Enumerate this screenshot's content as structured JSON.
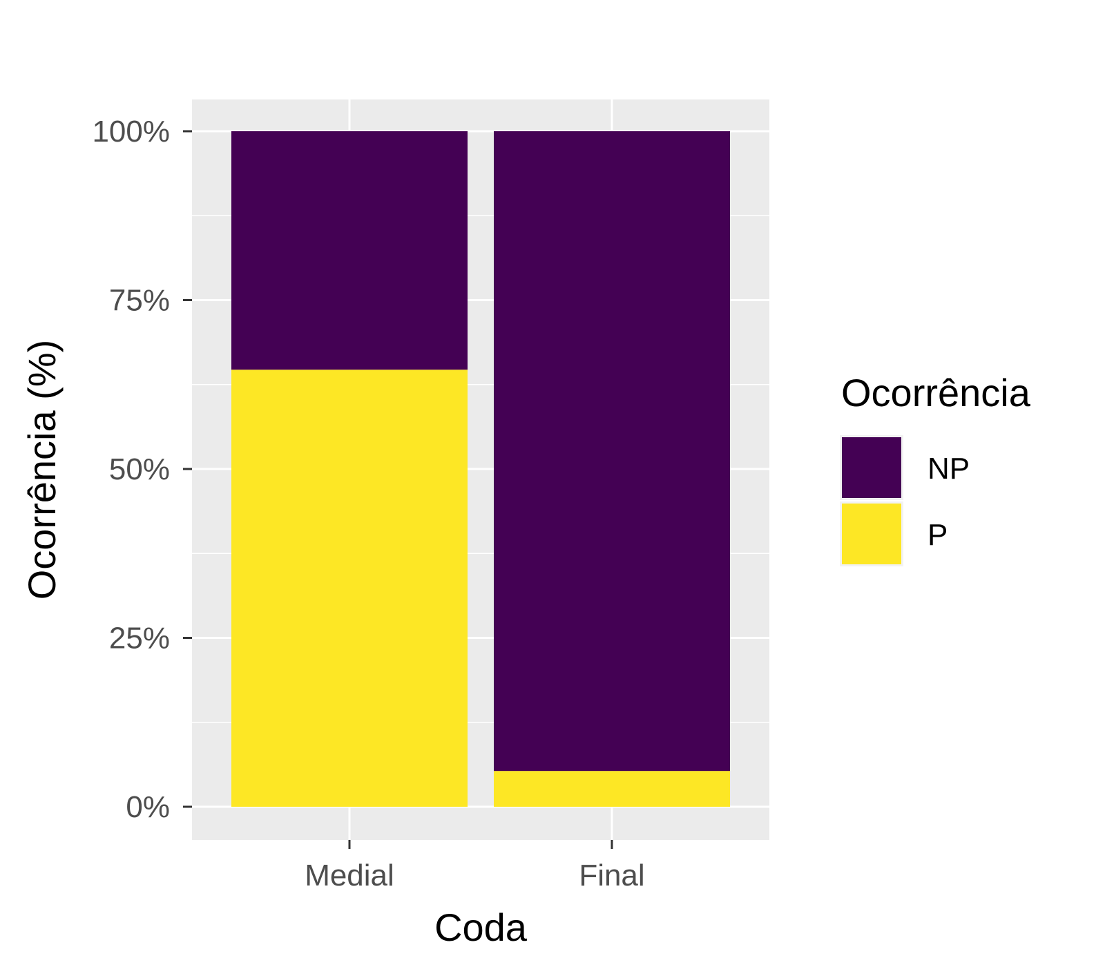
{
  "chart_data": {
    "type": "bar",
    "stacked": true,
    "categories": [
      "Medial",
      "Final"
    ],
    "series": [
      {
        "name": "NP",
        "color": "#440154",
        "values": [
          35.3,
          94.7
        ]
      },
      {
        "name": "P",
        "color": "#FDE725",
        "values": [
          64.7,
          5.3
        ]
      }
    ],
    "xlabel": "Coda",
    "ylabel": "Ocorrência (%)",
    "ylim": [
      0,
      100
    ],
    "yticks": [
      0,
      25,
      50,
      75,
      100
    ],
    "ytick_labels": [
      "0%",
      "25%",
      "50%",
      "75%",
      "100%"
    ],
    "legend": {
      "title": "Ocorrência",
      "position": "right"
    },
    "grid": true,
    "panel_background": "#EBEBEB"
  }
}
